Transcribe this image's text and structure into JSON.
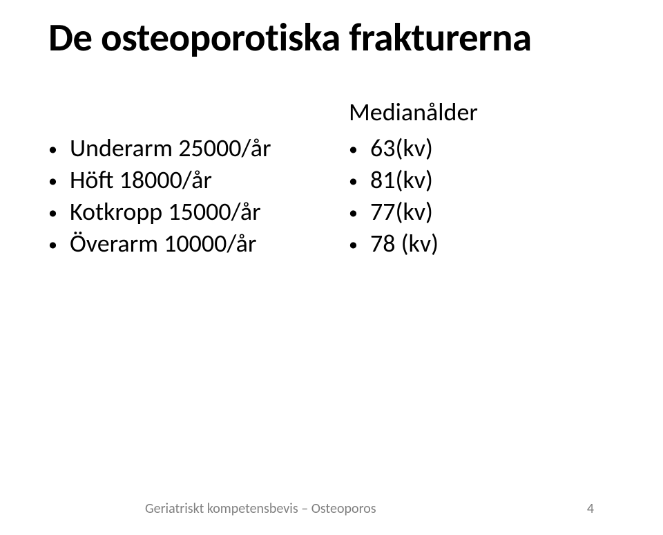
{
  "title": "De osteoporotiska frakturerna",
  "left": {
    "header": "",
    "items": [
      "Underarm 25000/år",
      "Höft 18000/år",
      "Kotkropp 15000/år",
      "Överarm 10000/år"
    ]
  },
  "right": {
    "header": "Medianålder",
    "items": [
      "63(kv)",
      "81(kv)",
      "77(kv)",
      "78 (kv)"
    ]
  },
  "footer": {
    "text": "Geriatriskt kompetensbevis – Osteoporos",
    "page": "4"
  },
  "colors": {
    "background": "#ffffff",
    "text": "#000000",
    "footer": "#7f7f7f"
  }
}
